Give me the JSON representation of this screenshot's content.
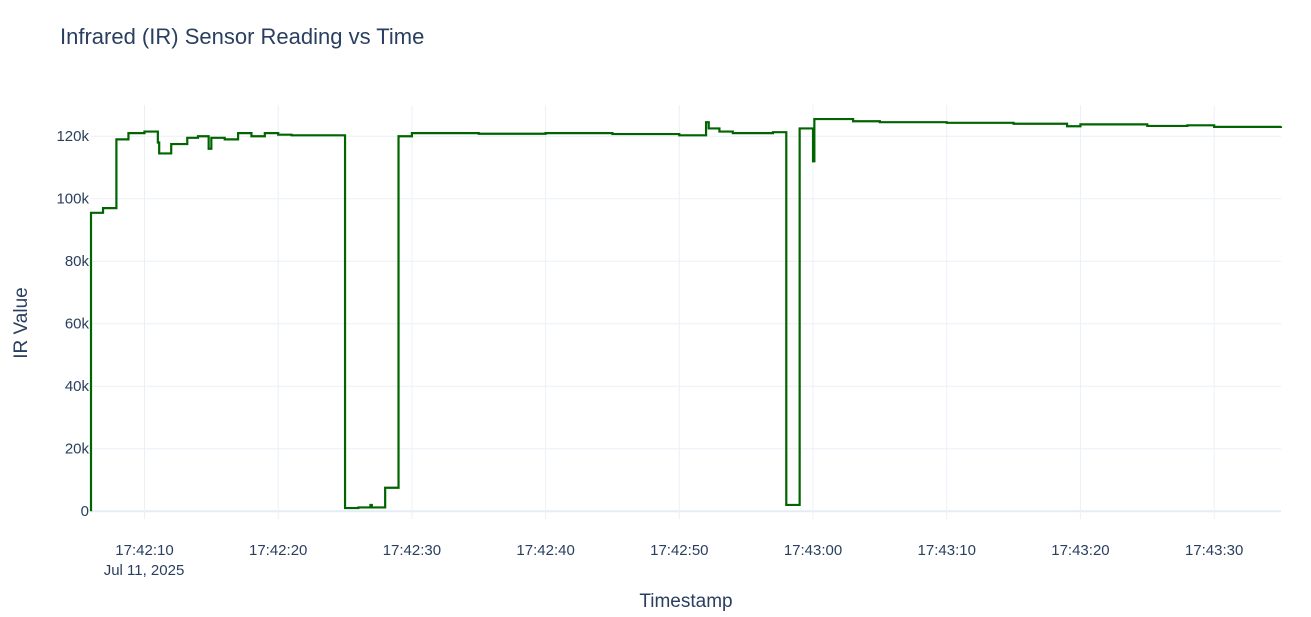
{
  "chart_data": {
    "type": "line",
    "title": "Infrared (IR) Sensor Reading vs Time",
    "xlabel": "Timestamp",
    "ylabel": "IR Value",
    "date_label": "Jul 11, 2025",
    "line_shape": "step",
    "xlim": [
      "2025-07-11T17:42:06",
      "2025-07-11T17:43:35"
    ],
    "ylim": [
      -2500,
      130000
    ],
    "x_ticks": [
      "17:42:10",
      "17:42:20",
      "17:42:30",
      "17:42:40",
      "17:42:50",
      "17:43:00",
      "17:43:10",
      "17:43:20",
      "17:43:30"
    ],
    "y_ticks": [
      0,
      20000,
      40000,
      60000,
      80000,
      100000,
      120000
    ],
    "y_tick_labels": [
      "0",
      "20k",
      "40k",
      "60k",
      "80k",
      "100k",
      "120k"
    ],
    "grid": true,
    "series": [
      {
        "color": "#006400",
        "x": [
          "17:42:06.0",
          "17:42:06.0",
          "17:42:06.9",
          "17:42:07.9",
          "17:42:08.8",
          "17:42:10.0",
          "17:42:11.0",
          "17:42:11.1",
          "17:42:12.0",
          "17:42:13.0",
          "17:42:13.2",
          "17:42:14.0",
          "17:42:14.8",
          "17:42:15.0",
          "17:42:16.0",
          "17:42:17.0",
          "17:42:18.0",
          "17:42:19.0",
          "17:42:20.0",
          "17:42:21.0",
          "17:42:22.0",
          "17:42:23.0",
          "17:42:24.0",
          "17:42:25.0",
          "17:42:26.0",
          "17:42:26.9",
          "17:42:27.0",
          "17:42:28.0",
          "17:42:29.0",
          "17:42:30.0",
          "17:42:35.0",
          "17:42:40.0",
          "17:42:45.0",
          "17:42:50.0",
          "17:42:52.0",
          "17:42:52.2",
          "17:42:53.0",
          "17:42:54.0",
          "17:42:57.0",
          "17:42:58.0",
          "17:42:59.0",
          "17:43:00.0",
          "17:43:00.1",
          "17:43:00.2",
          "17:43:03.0",
          "17:43:05.0",
          "17:43:10.0",
          "17:43:15.0",
          "17:43:19.0",
          "17:43:20.0",
          "17:43:25.0",
          "17:43:28.0",
          "17:43:30.0",
          "17:43:35.0"
        ],
        "y": [
          0,
          95500,
          97000,
          119000,
          121000,
          121500,
          118000,
          114500,
          117500,
          117500,
          119500,
          120000,
          116000,
          119500,
          119000,
          121000,
          120000,
          121000,
          120500,
          120300,
          120300,
          120300,
          120300,
          1000,
          1200,
          2000,
          1200,
          7500,
          120000,
          121000,
          120800,
          121000,
          120700,
          120300,
          124500,
          122500,
          121500,
          121000,
          121300,
          2000,
          122500,
          112000,
          125500,
          125500,
          124800,
          124500,
          124300,
          124000,
          123200,
          123800,
          123300,
          123500,
          123000,
          123200
        ]
      }
    ]
  }
}
